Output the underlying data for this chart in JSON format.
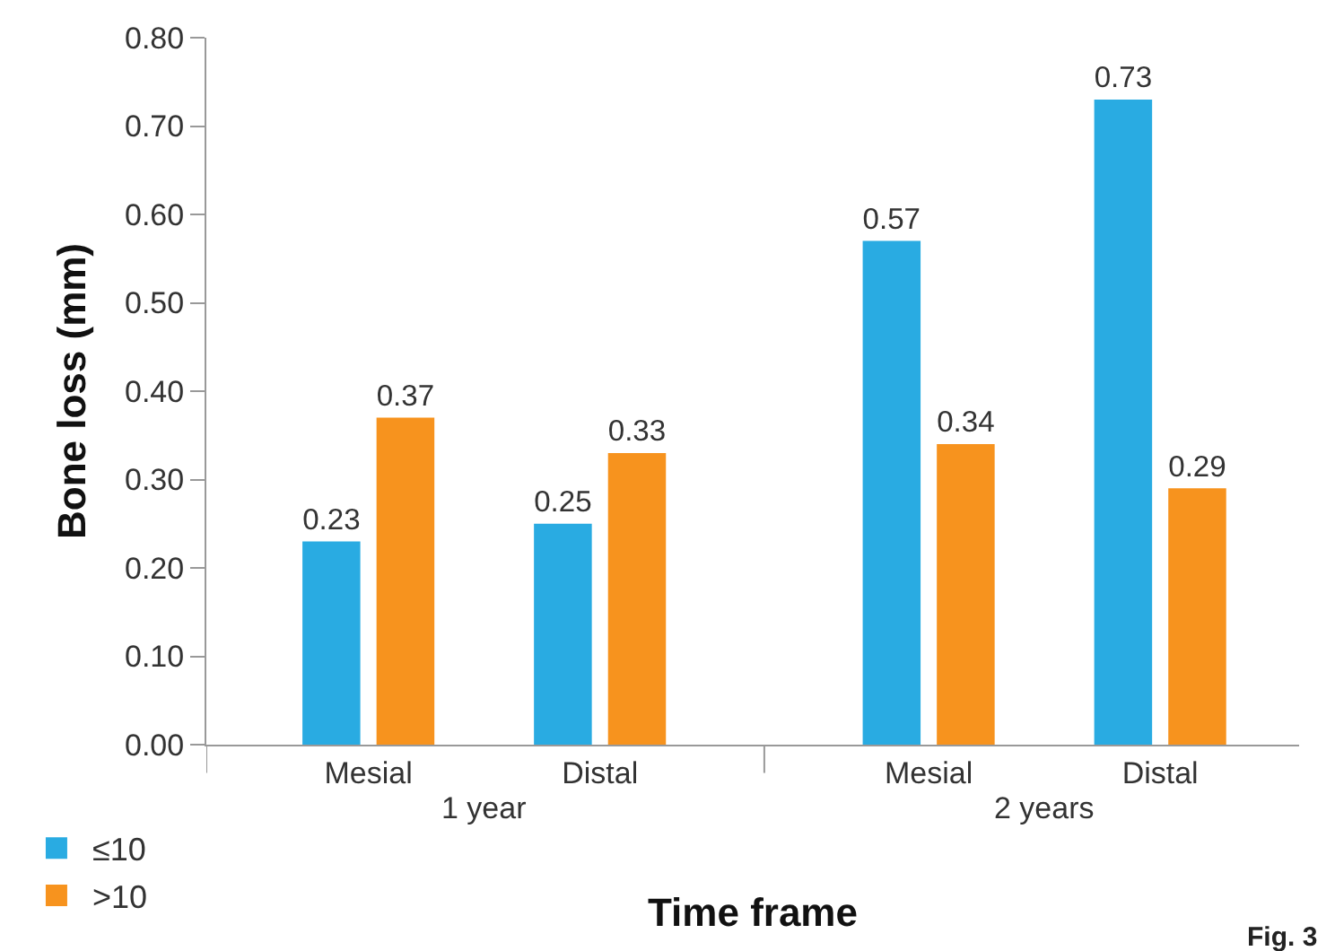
{
  "chart_data": {
    "type": "bar",
    "categories": [
      "Mesial",
      "Distal",
      "Mesial",
      "Distal"
    ],
    "xlabel": "Time frame",
    "ylabel": "Bone loss (mm)",
    "series": [
      {
        "name": "≤10",
        "color": "#29abe2",
        "values": [
          0.23,
          0.25,
          0.57,
          0.73
        ]
      },
      {
        "name": ">10",
        "color": "#f7931e",
        "values": [
          0.37,
          0.33,
          0.34,
          0.29
        ]
      }
    ],
    "ylim": [
      0,
      0.8
    ],
    "yticks": [
      {
        "value": 0,
        "label": "0.00"
      },
      {
        "value": 0.1,
        "label": "0.10"
      },
      {
        "value": 0.2,
        "label": "0.20"
      },
      {
        "value": 0.3,
        "label": "0.30"
      },
      {
        "value": 0.4,
        "label": "0.40"
      },
      {
        "value": 0.5,
        "label": "0.50"
      },
      {
        "value": 0.6,
        "label": "0.60"
      },
      {
        "value": 0.7,
        "label": "0.70"
      },
      {
        "value": 0.8,
        "label": "0.80"
      }
    ],
    "data_labels": true,
    "legend": "bottom left",
    "annotations": [
      "1 year",
      "2 years",
      "Fig. 3"
    ]
  }
}
